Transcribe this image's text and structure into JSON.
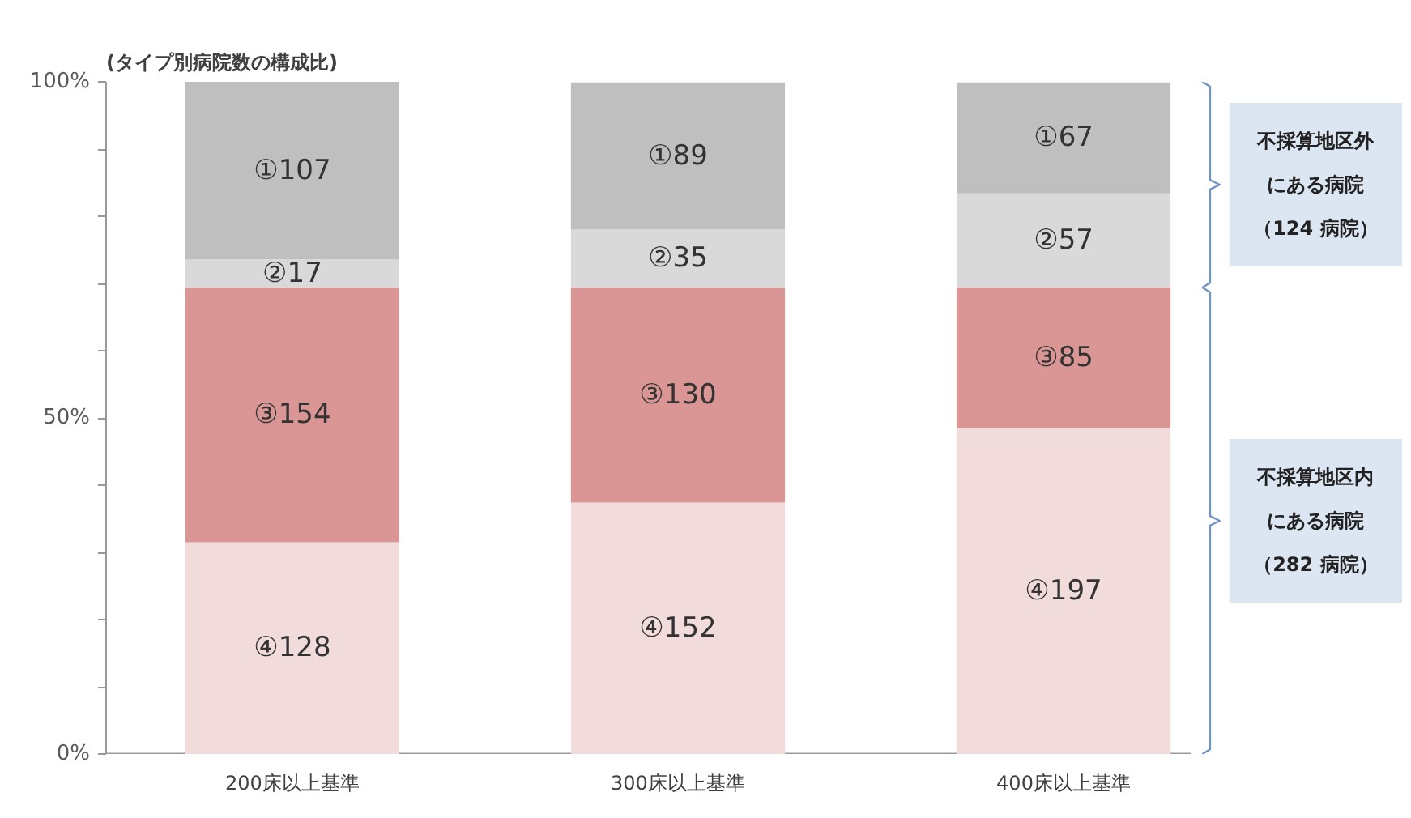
{
  "chart_data": {
    "type": "bar",
    "stacked": true,
    "title": "(タイプ別病院数の構成比)",
    "categories": [
      "200床以上基準",
      "300床以上基準",
      "400床以上基準"
    ],
    "series": [
      {
        "color": "#f2dcdb",
        "values": [
          31.5,
          37.4,
          48.5
        ],
        "value_labels": [
          "④128",
          "④152",
          "④197"
        ]
      },
      {
        "color": "#d99694",
        "values": [
          37.9,
          32.0,
          20.9
        ],
        "value_labels": [
          "③154",
          "③130",
          "③85"
        ]
      },
      {
        "color": "#d9d9d9",
        "values": [
          4.2,
          8.6,
          14.0
        ],
        "value_labels": [
          "②17",
          "②35",
          "②57"
        ]
      },
      {
        "color": "#bfbfbf",
        "values": [
          26.4,
          21.9,
          16.5
        ],
        "value_labels": [
          "①107",
          "①89",
          "①67"
        ]
      }
    ],
    "ylim": [
      0,
      100
    ],
    "yticks": [
      {
        "value": 0,
        "label": "0%"
      },
      {
        "value": 10,
        "label": null
      },
      {
        "value": 20,
        "label": null
      },
      {
        "value": 30,
        "label": null
      },
      {
        "value": 40,
        "label": null
      },
      {
        "value": 50,
        "label": "50%"
      },
      {
        "value": 60,
        "label": null
      },
      {
        "value": 70,
        "label": null
      },
      {
        "value": 80,
        "label": null
      },
      {
        "value": 90,
        "label": null
      },
      {
        "value": 100,
        "label": "100%"
      }
    ],
    "grid": false,
    "annotations": [
      "不採算地区外",
      "にある病院",
      "（124 病院）",
      "不採算地区内",
      "にある病院",
      "（282 病院）"
    ]
  }
}
